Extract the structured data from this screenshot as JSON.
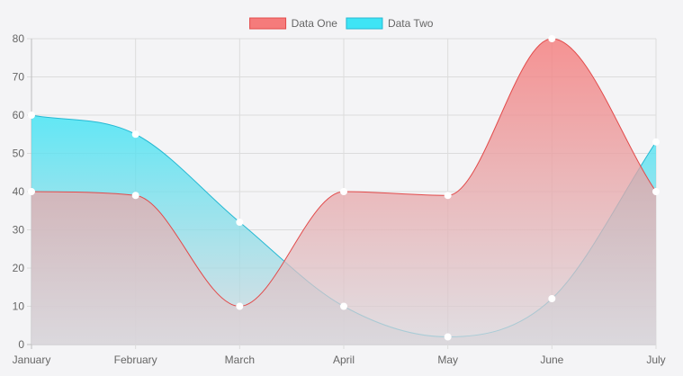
{
  "chart_data": {
    "type": "area",
    "title": "",
    "xlabel": "",
    "ylabel": "",
    "categories": [
      "January",
      "February",
      "March",
      "April",
      "May",
      "June",
      "July"
    ],
    "ylim": [
      0,
      80
    ],
    "y_ticks": [
      "0",
      "10",
      "20",
      "30",
      "40",
      "50",
      "60",
      "70",
      "80"
    ],
    "grid": true,
    "legend_position": "top",
    "series": [
      {
        "name": "Data One",
        "values": [
          40,
          39,
          10,
          40,
          39,
          80,
          40
        ],
        "color": "#e24b4b",
        "fill_top": "#f57b7b",
        "fill_bottom": "#d9d6db"
      },
      {
        "name": "Data Two",
        "values": [
          60,
          55,
          32,
          10,
          2,
          12,
          53
        ],
        "color": "#26b9d3",
        "fill_top": "#3ee4f5",
        "fill_bottom": "#d9d6db"
      }
    ]
  }
}
